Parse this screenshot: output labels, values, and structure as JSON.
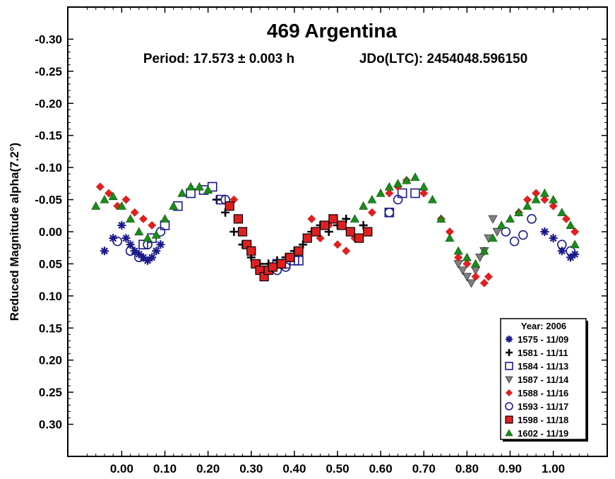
{
  "chart_data": {
    "type": "scatter",
    "title": "469 Argentina",
    "subtitle_period": "Period: 17.573 ± 0.003 h",
    "subtitle_epoch": "JDo(LTC): 2454048.596150",
    "xlabel": "",
    "ylabel": "Reduced Magnitude alpha(7.2°)",
    "xlim": [
      -0.125,
      1.125
    ],
    "ylim": [
      -0.35,
      0.35
    ],
    "y_inverted": true,
    "x_ticks": [
      0.0,
      0.1,
      0.2,
      0.3,
      0.4,
      0.5,
      0.6,
      0.7,
      0.8,
      0.9,
      1.0
    ],
    "x_tick_labels": [
      "0.00",
      "0.10",
      "0.20",
      "0.30",
      "0.40",
      "0.50",
      "0.60",
      "0.70",
      "0.80",
      "0.90",
      "1.00"
    ],
    "y_ticks": [
      -0.3,
      -0.25,
      -0.2,
      -0.15,
      -0.1,
      -0.05,
      0.0,
      0.05,
      0.1,
      0.15,
      0.2,
      0.25,
      0.3
    ],
    "y_tick_labels": [
      "-0.30",
      "-0.25",
      "-0.20",
      "-0.15",
      "-0.10",
      "-0.05",
      "0.00",
      "0.05",
      "0.10",
      "0.15",
      "0.20",
      "0.25",
      "0.30"
    ],
    "grid": false,
    "legend_title": "Year: 2006",
    "legend_position": "bottom-right",
    "series": [
      {
        "name": "1575 - 11/09",
        "marker": "asterisk",
        "color": "#1a1a8c",
        "points": [
          [
            -0.04,
            0.03
          ],
          [
            -0.02,
            0.01
          ],
          [
            0.0,
            -0.01
          ],
          [
            0.01,
            0.01
          ],
          [
            0.02,
            0.02
          ],
          [
            0.03,
            0.03
          ],
          [
            0.04,
            0.035
          ],
          [
            0.05,
            0.04
          ],
          [
            0.06,
            0.045
          ],
          [
            0.07,
            0.04
          ],
          [
            0.08,
            0.03
          ],
          [
            0.09,
            0.02
          ],
          [
            0.98,
            0.0
          ],
          [
            1.0,
            0.01
          ],
          [
            1.02,
            0.03
          ],
          [
            1.04,
            0.04
          ],
          [
            1.05,
            0.035
          ]
        ]
      },
      {
        "name": "1581 - 11/11",
        "marker": "plus",
        "color": "#000000",
        "points": [
          [
            0.22,
            -0.05
          ],
          [
            0.24,
            -0.03
          ],
          [
            0.26,
            0.0
          ],
          [
            0.28,
            0.02
          ],
          [
            0.3,
            0.04
          ],
          [
            0.32,
            0.05
          ],
          [
            0.34,
            0.05
          ],
          [
            0.36,
            0.045
          ],
          [
            0.38,
            0.04
          ],
          [
            0.4,
            0.03
          ],
          [
            0.42,
            0.02
          ],
          [
            0.44,
            0.0
          ],
          [
            0.46,
            -0.01
          ],
          [
            0.48,
            0.0
          ],
          [
            0.5,
            -0.01
          ],
          [
            0.52,
            -0.02
          ],
          [
            0.56,
            -0.01
          ]
        ]
      },
      {
        "name": "1584 - 11/13",
        "marker": "square-open",
        "color": "#1a1a8c",
        "points": [
          [
            0.05,
            0.02
          ],
          [
            0.07,
            0.01
          ],
          [
            0.1,
            -0.01
          ],
          [
            0.13,
            -0.04
          ],
          [
            0.16,
            -0.06
          ],
          [
            0.19,
            -0.065
          ],
          [
            0.21,
            -0.07
          ],
          [
            0.23,
            -0.05
          ],
          [
            0.36,
            0.05
          ],
          [
            0.38,
            0.05
          ],
          [
            0.4,
            0.045
          ],
          [
            0.41,
            0.045
          ],
          [
            0.62,
            -0.03
          ],
          [
            0.65,
            -0.06
          ],
          [
            0.68,
            -0.06
          ]
        ]
      },
      {
        "name": "1587 - 11/14",
        "marker": "triangle-down",
        "color": "#808080",
        "points": [
          [
            0.78,
            0.05
          ],
          [
            0.79,
            0.06
          ],
          [
            0.8,
            0.07
          ],
          [
            0.81,
            0.08
          ],
          [
            0.82,
            0.06
          ],
          [
            0.83,
            0.04
          ],
          [
            0.84,
            0.03
          ],
          [
            0.85,
            0.01
          ],
          [
            0.86,
            -0.02
          ],
          [
            0.87,
            0.0
          ]
        ]
      },
      {
        "name": "1588 - 11/16",
        "marker": "diamond",
        "color": "#e02020",
        "points": [
          [
            -0.05,
            -0.07
          ],
          [
            -0.03,
            -0.06
          ],
          [
            -0.01,
            -0.04
          ],
          [
            0.01,
            -0.05
          ],
          [
            0.03,
            -0.03
          ],
          [
            0.05,
            -0.02
          ],
          [
            0.07,
            -0.01
          ],
          [
            0.26,
            -0.05
          ],
          [
            0.44,
            -0.02
          ],
          [
            0.46,
            0.01
          ],
          [
            0.48,
            -0.01
          ],
          [
            0.5,
            0.02
          ],
          [
            0.52,
            0.03
          ],
          [
            0.54,
            0.01
          ],
          [
            0.58,
            -0.03
          ],
          [
            0.62,
            -0.06
          ],
          [
            0.64,
            -0.07
          ],
          [
            0.66,
            -0.08
          ],
          [
            0.7,
            -0.06
          ],
          [
            0.74,
            -0.02
          ],
          [
            0.76,
            0.0
          ],
          [
            0.78,
            0.04
          ],
          [
            0.8,
            0.05
          ],
          [
            0.82,
            0.07
          ],
          [
            0.84,
            0.08
          ],
          [
            0.85,
            0.07
          ],
          [
            0.92,
            -0.03
          ],
          [
            0.94,
            -0.05
          ],
          [
            0.96,
            -0.06
          ],
          [
            0.98,
            -0.05
          ],
          [
            1.0,
            -0.04
          ],
          [
            1.03,
            -0.02
          ],
          [
            1.05,
            0.0
          ]
        ]
      },
      {
        "name": "1593 - 11/17",
        "marker": "circle-open",
        "color": "#1a1a8c",
        "points": [
          [
            -0.01,
            0.015
          ],
          [
            0.02,
            0.03
          ],
          [
            0.04,
            0.04
          ],
          [
            0.06,
            0.02
          ],
          [
            0.09,
            0.0
          ],
          [
            0.24,
            -0.05
          ],
          [
            0.36,
            0.06
          ],
          [
            0.38,
            0.055
          ],
          [
            0.62,
            -0.03
          ],
          [
            0.64,
            -0.05
          ],
          [
            0.89,
            0.0
          ],
          [
            0.91,
            0.015
          ],
          [
            0.93,
            0.005
          ],
          [
            0.95,
            -0.02
          ],
          [
            1.02,
            0.02
          ],
          [
            1.04,
            0.03
          ]
        ]
      },
      {
        "name": "1598 - 11/18",
        "marker": "square",
        "color": "#e02020",
        "points": [
          [
            0.25,
            -0.04
          ],
          [
            0.27,
            -0.02
          ],
          [
            0.28,
            0.0
          ],
          [
            0.29,
            0.02
          ],
          [
            0.3,
            0.03
          ],
          [
            0.31,
            0.05
          ],
          [
            0.32,
            0.06
          ],
          [
            0.33,
            0.07
          ],
          [
            0.34,
            0.06
          ],
          [
            0.35,
            0.055
          ],
          [
            0.37,
            0.05
          ],
          [
            0.39,
            0.04
          ],
          [
            0.41,
            0.03
          ],
          [
            0.43,
            0.01
          ],
          [
            0.45,
            0.0
          ],
          [
            0.47,
            -0.01
          ],
          [
            0.49,
            -0.02
          ],
          [
            0.51,
            -0.01
          ],
          [
            0.53,
            0.0
          ],
          [
            0.55,
            0.01
          ],
          [
            0.57,
            0.0
          ]
        ]
      },
      {
        "name": "1602 - 11/19",
        "marker": "triangle",
        "color": "#1a8c1a",
        "points": [
          [
            -0.06,
            -0.04
          ],
          [
            -0.04,
            -0.05
          ],
          [
            -0.02,
            -0.055
          ],
          [
            0.0,
            -0.04
          ],
          [
            0.02,
            -0.02
          ],
          [
            0.04,
            0.0
          ],
          [
            0.06,
            0.01
          ],
          [
            0.08,
            0.005
          ],
          [
            0.1,
            -0.02
          ],
          [
            0.12,
            -0.04
          ],
          [
            0.14,
            -0.06
          ],
          [
            0.16,
            -0.07
          ],
          [
            0.18,
            -0.07
          ],
          [
            0.2,
            -0.065
          ],
          [
            0.54,
            -0.02
          ],
          [
            0.56,
            -0.04
          ],
          [
            0.58,
            -0.05
          ],
          [
            0.6,
            -0.06
          ],
          [
            0.62,
            -0.07
          ],
          [
            0.64,
            -0.075
          ],
          [
            0.66,
            -0.08
          ],
          [
            0.68,
            -0.085
          ],
          [
            0.7,
            -0.07
          ],
          [
            0.72,
            -0.05
          ],
          [
            0.74,
            -0.02
          ],
          [
            0.76,
            0.01
          ],
          [
            0.78,
            0.03
          ],
          [
            0.8,
            0.04
          ],
          [
            0.82,
            0.05
          ],
          [
            0.84,
            0.03
          ],
          [
            0.86,
            0.01
          ],
          [
            0.88,
            -0.01
          ],
          [
            0.9,
            -0.02
          ],
          [
            0.92,
            -0.03
          ],
          [
            0.94,
            -0.04
          ],
          [
            0.96,
            -0.05
          ],
          [
            0.98,
            -0.06
          ],
          [
            1.0,
            -0.05
          ],
          [
            1.02,
            -0.03
          ],
          [
            1.04,
            -0.01
          ],
          [
            1.05,
            0.02
          ]
        ]
      }
    ]
  }
}
